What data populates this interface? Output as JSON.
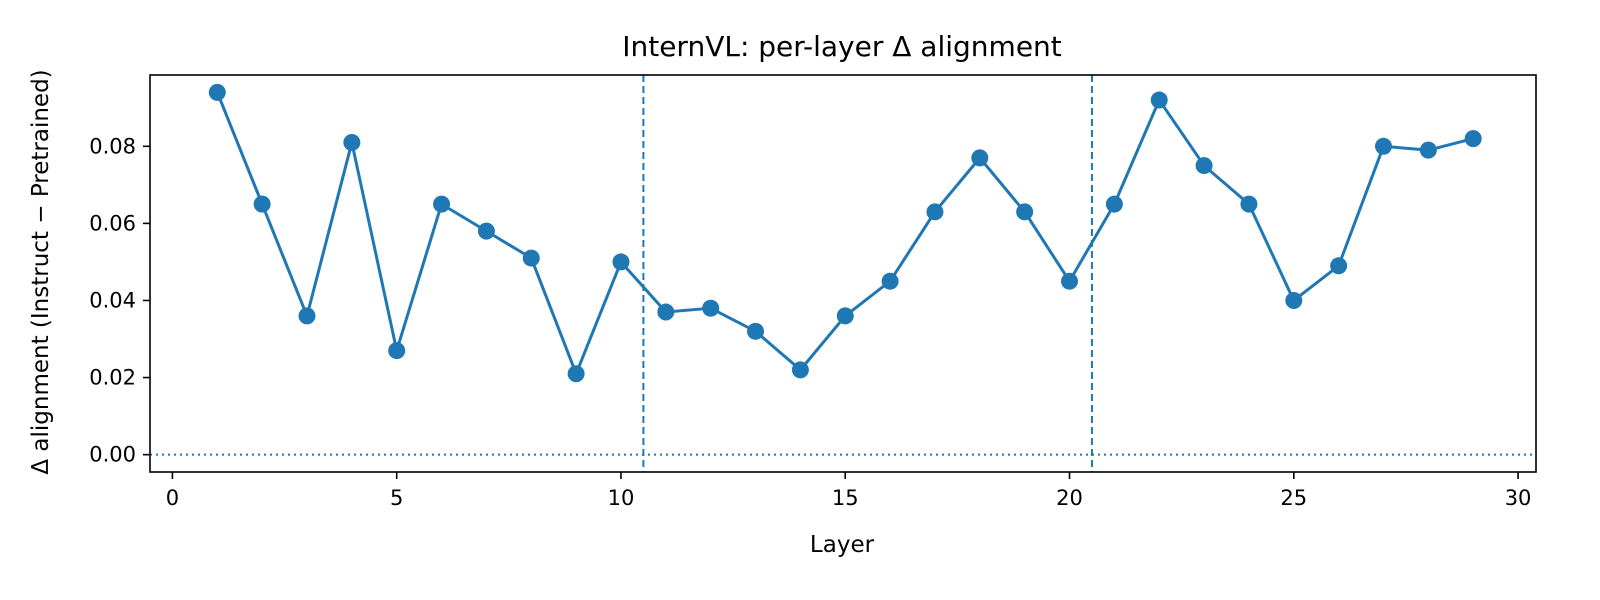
{
  "chart_data": {
    "type": "line",
    "title": "InternVL: per-layer Δ alignment",
    "xlabel": "Layer",
    "ylabel": "Δ alignment (Instruct − Pretrained)",
    "xlim": [
      -0.5,
      30.4
    ],
    "ylim": [
      -0.0045,
      0.0985
    ],
    "xticks": [
      0,
      5,
      10,
      15,
      20,
      25,
      30
    ],
    "xtick_labels": [
      "0",
      "5",
      "10",
      "15",
      "20",
      "25",
      "30"
    ],
    "yticks": [
      0.0,
      0.02,
      0.04,
      0.06,
      0.08
    ],
    "ytick_labels": [
      "0.00",
      "0.02",
      "0.04",
      "0.06",
      "0.08"
    ],
    "grid": false,
    "series": [
      {
        "color": "#1f77b4",
        "marker": "circle",
        "x": [
          1,
          2,
          3,
          4,
          5,
          6,
          7,
          8,
          9,
          10,
          11,
          12,
          13,
          14,
          15,
          16,
          17,
          18,
          19,
          20,
          21,
          22,
          23,
          24,
          25,
          26,
          27,
          28,
          29
        ],
        "y": [
          0.094,
          0.065,
          0.036,
          0.081,
          0.027,
          0.065,
          0.058,
          0.051,
          0.021,
          0.05,
          0.037,
          0.038,
          0.032,
          0.022,
          0.036,
          0.045,
          0.063,
          0.077,
          0.063,
          0.045,
          0.065,
          0.092,
          0.075,
          0.065,
          0.04,
          0.049,
          0.08,
          0.079,
          0.082
        ]
      }
    ],
    "reference_lines": [
      {
        "orientation": "horizontal",
        "value": 0.0,
        "style": "dotted",
        "color": "#1f77b4"
      },
      {
        "orientation": "vertical",
        "value": 10.5,
        "style": "dashed",
        "color": "#1f77b4"
      },
      {
        "orientation": "vertical",
        "value": 20.5,
        "style": "dashed",
        "color": "#1f77b4"
      }
    ]
  }
}
